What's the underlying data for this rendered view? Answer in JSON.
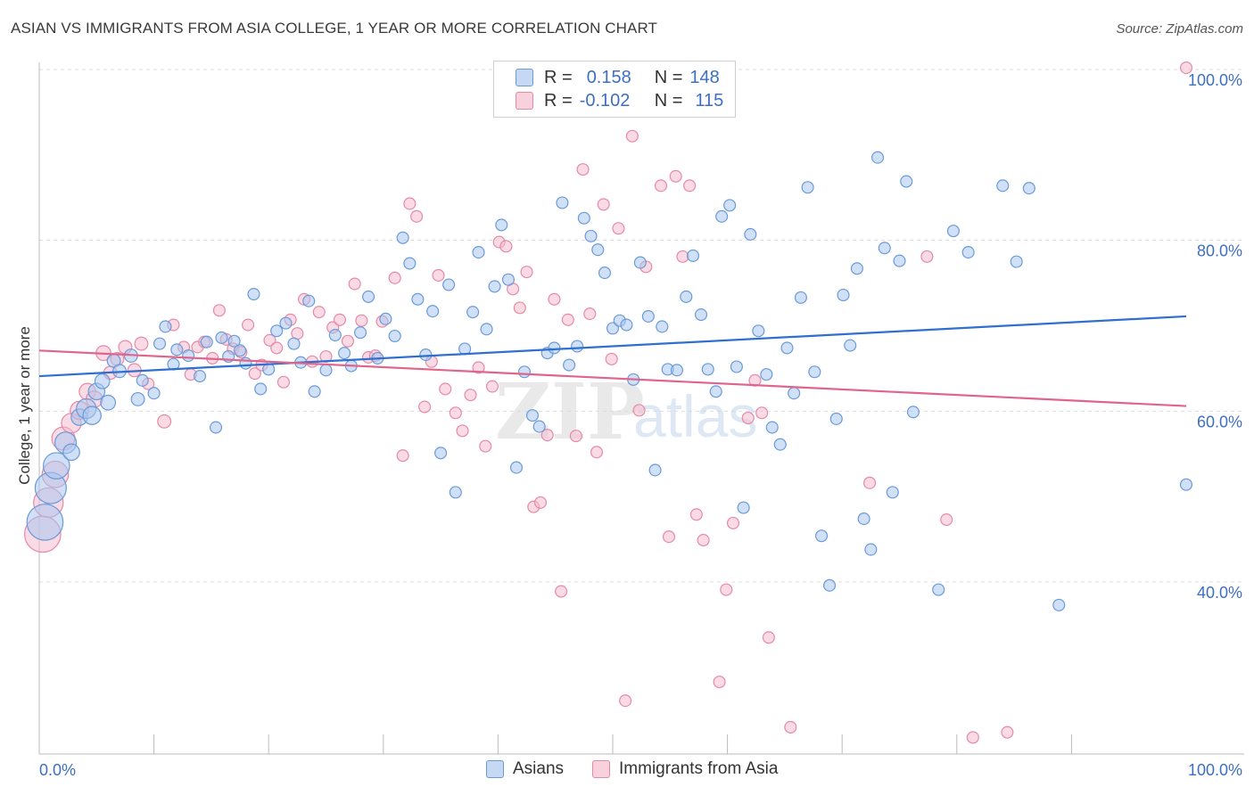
{
  "title": "ASIAN VS IMMIGRANTS FROM ASIA COLLEGE, 1 YEAR OR MORE CORRELATION CHART",
  "source": "Source: ZipAtlas.com",
  "colors": {
    "blue_fill": "#a9c7ee",
    "blue_stroke": "#6a9ad8",
    "blue_line": "#2e6fd0",
    "pink_fill": "#f6bccd",
    "pink_stroke": "#e58aa6",
    "pink_line": "#e0648c",
    "tick_text": "#3d6fc4",
    "grid": "#dddddd"
  },
  "legend_top": {
    "rows": [
      {
        "r_label": "R =",
        "r_value": "0.158",
        "n_label": "N =",
        "n_value": "148"
      },
      {
        "r_label": "R =",
        "r_value": "-0.102",
        "n_label": "N =",
        "n_value": "115"
      }
    ]
  },
  "watermark": {
    "zip": "ZIP",
    "atlas": "atlas"
  },
  "chart_data": {
    "type": "scatter",
    "title": "ASIAN VS IMMIGRANTS FROM ASIA COLLEGE, 1 YEAR OR MORE CORRELATION CHART",
    "xlabel": "",
    "ylabel": "College, 1 year or more",
    "xlim": [
      0,
      100
    ],
    "ylim": [
      22,
      102
    ],
    "x_tick_labels": [
      "0.0%",
      "100.0%"
    ],
    "y_ticks": [
      40,
      60,
      80,
      100
    ],
    "y_tick_labels": [
      "40.0%",
      "60.0%",
      "80.0%",
      "100.0%"
    ],
    "grid": true,
    "legend_position": "top-center",
    "series": [
      {
        "name": "Asians",
        "color": "#6a9ad8",
        "trend": {
          "x": [
            0,
            100
          ],
          "y": [
            64.1,
            71.1
          ]
        },
        "points": [
          [
            0.5,
            47,
            2.2
          ],
          [
            1,
            51,
            1.9
          ],
          [
            1.5,
            53.6,
            1.6
          ],
          [
            2.3,
            56.3,
            1.3
          ],
          [
            2.8,
            55.2,
            1
          ],
          [
            3.5,
            59.3,
            1
          ],
          [
            4.1,
            60.3,
            1.2
          ],
          [
            4.6,
            59.5,
            1.1
          ],
          [
            5,
            62.3,
            1
          ],
          [
            5.5,
            63.5,
            0.9
          ],
          [
            6,
            61,
            0.9
          ],
          [
            6.5,
            65.9,
            0.8
          ],
          [
            7,
            64.7,
            0.8
          ],
          [
            8,
            66.5,
            0.8
          ],
          [
            8.6,
            61.4,
            0.8
          ],
          [
            9,
            63.6,
            0.7
          ],
          [
            10,
            62.1,
            0.7
          ],
          [
            10.5,
            67.9,
            0.7
          ],
          [
            11,
            69.9,
            0.7
          ],
          [
            11.7,
            65.5,
            0.7
          ],
          [
            12,
            67.2,
            0.7
          ],
          [
            13,
            66.5,
            0.7
          ],
          [
            14,
            64.1,
            0.7
          ],
          [
            14.6,
            68.1,
            0.7
          ],
          [
            15.4,
            58.1,
            0.7
          ],
          [
            15.9,
            68.6,
            0.7
          ],
          [
            16.5,
            66.4,
            0.7
          ],
          [
            17,
            68.2,
            0.7
          ],
          [
            17.5,
            67.1,
            0.7
          ],
          [
            18,
            65.6,
            0.7
          ],
          [
            18.7,
            73.7,
            0.7
          ],
          [
            19.3,
            62.6,
            0.7
          ],
          [
            20,
            64.9,
            0.7
          ],
          [
            20.7,
            69.4,
            0.7
          ],
          [
            21.5,
            70.3,
            0.7
          ],
          [
            22.2,
            67.9,
            0.7
          ],
          [
            22.8,
            65.7,
            0.7
          ],
          [
            23.5,
            72.9,
            0.7
          ],
          [
            24,
            62.3,
            0.7
          ],
          [
            25,
            64.8,
            0.7
          ],
          [
            25.8,
            68.9,
            0.7
          ],
          [
            26.6,
            66.8,
            0.7
          ],
          [
            27.2,
            65.3,
            0.7
          ],
          [
            28,
            69.2,
            0.7
          ],
          [
            28.7,
            73.4,
            0.7
          ],
          [
            29.5,
            66.2,
            0.7
          ],
          [
            30.2,
            70.8,
            0.7
          ],
          [
            31,
            68.8,
            0.7
          ],
          [
            31.7,
            80.3,
            0.7
          ],
          [
            32.3,
            77.3,
            0.7
          ],
          [
            33,
            73.1,
            0.7
          ],
          [
            33.7,
            66.6,
            0.7
          ],
          [
            34.3,
            71.7,
            0.7
          ],
          [
            35,
            55.1,
            0.7
          ],
          [
            35.7,
            74.8,
            0.7
          ],
          [
            36.3,
            50.5,
            0.7
          ],
          [
            37.1,
            67.3,
            0.7
          ],
          [
            37.8,
            71.6,
            0.7
          ],
          [
            38.3,
            78.6,
            0.7
          ],
          [
            39,
            69.6,
            0.7
          ],
          [
            39.7,
            74.6,
            0.7
          ],
          [
            40.3,
            81.8,
            0.7
          ],
          [
            40.9,
            75.4,
            0.7
          ],
          [
            41.6,
            53.4,
            0.7
          ],
          [
            42.3,
            64.6,
            0.7
          ],
          [
            43,
            59.5,
            0.7
          ],
          [
            43.6,
            58.2,
            0.7
          ],
          [
            44.3,
            66.8,
            0.7
          ],
          [
            44.9,
            67.4,
            0.7
          ],
          [
            45.6,
            84.4,
            0.7
          ],
          [
            46.2,
            65.4,
            0.7
          ],
          [
            46.9,
            67.6,
            0.7
          ],
          [
            47.5,
            82.6,
            0.7
          ],
          [
            48.1,
            80.5,
            0.7
          ],
          [
            48.7,
            78.9,
            0.7
          ],
          [
            49.3,
            76.2,
            0.7
          ],
          [
            50,
            69.7,
            0.7
          ],
          [
            50.6,
            70.6,
            0.7
          ],
          [
            51.2,
            70.1,
            0.7
          ],
          [
            51.8,
            63.7,
            0.7
          ],
          [
            52.4,
            77.4,
            0.7
          ],
          [
            53.1,
            71.1,
            0.7
          ],
          [
            53.7,
            53.1,
            0.7
          ],
          [
            54.3,
            69.9,
            0.7
          ],
          [
            54.8,
            64.9,
            0.7
          ],
          [
            55.6,
            64.8,
            0.7
          ],
          [
            56.4,
            73.4,
            0.7
          ],
          [
            57,
            78.2,
            0.7
          ],
          [
            57.7,
            71.3,
            0.7
          ],
          [
            58.3,
            64.9,
            0.7
          ],
          [
            59,
            62.3,
            0.7
          ],
          [
            59.5,
            82.8,
            0.7
          ],
          [
            60.2,
            84.1,
            0.7
          ],
          [
            60.8,
            65.2,
            0.7
          ],
          [
            61.4,
            48.7,
            0.7
          ],
          [
            62,
            80.7,
            0.7
          ],
          [
            62.7,
            69.4,
            0.7
          ],
          [
            63.4,
            64.3,
            0.7
          ],
          [
            63.9,
            58.1,
            0.7
          ],
          [
            64.6,
            56.1,
            0.7
          ],
          [
            65.2,
            67.4,
            0.7
          ],
          [
            65.8,
            62.1,
            0.7
          ],
          [
            66.4,
            73.3,
            0.7
          ],
          [
            67,
            86.2,
            0.7
          ],
          [
            67.6,
            64.6,
            0.7
          ],
          [
            68.2,
            45.4,
            0.7
          ],
          [
            68.9,
            39.6,
            0.7
          ],
          [
            69.5,
            59.1,
            0.7
          ],
          [
            70.1,
            73.6,
            0.7
          ],
          [
            70.7,
            67.7,
            0.7
          ],
          [
            71.3,
            76.7,
            0.7
          ],
          [
            71.9,
            47.4,
            0.7
          ],
          [
            72.5,
            43.8,
            0.7
          ],
          [
            73.1,
            89.7,
            0.7
          ],
          [
            73.7,
            79.1,
            0.7
          ],
          [
            74.4,
            50.5,
            0.7
          ],
          [
            75,
            77.6,
            0.7
          ],
          [
            75.6,
            86.9,
            0.7
          ],
          [
            76.2,
            59.9,
            0.7
          ],
          [
            78.4,
            39.1,
            0.7
          ],
          [
            79.7,
            81.1,
            0.7
          ],
          [
            81,
            78.6,
            0.7
          ],
          [
            84,
            86.4,
            0.7
          ],
          [
            85.2,
            77.5,
            0.7
          ],
          [
            86.3,
            86.1,
            0.7
          ],
          [
            88.9,
            37.3,
            0.7
          ],
          [
            100,
            51.4,
            0.7
          ]
        ]
      },
      {
        "name": "Immigrants from Asia",
        "color": "#e58aa6",
        "trend": {
          "x": [
            0,
            100
          ],
          "y": [
            67.1,
            60.6
          ]
        },
        "points": [
          [
            0.3,
            45.6,
            2.2
          ],
          [
            0.8,
            49.3,
            1.8
          ],
          [
            1.4,
            52.6,
            1.6
          ],
          [
            2.1,
            56.8,
            1.4
          ],
          [
            2.8,
            58.6,
            1.2
          ],
          [
            3.5,
            60.1,
            1.1
          ],
          [
            4.2,
            62.3,
            1
          ],
          [
            4.8,
            61.4,
            1
          ],
          [
            5.6,
            66.8,
            0.9
          ],
          [
            6.2,
            64.5,
            0.8
          ],
          [
            6.8,
            66.1,
            0.8
          ],
          [
            7.5,
            67.5,
            0.8
          ],
          [
            8.3,
            64.8,
            0.8
          ],
          [
            8.9,
            67.9,
            0.8
          ],
          [
            9.5,
            63.2,
            0.7
          ],
          [
            10.9,
            58.8,
            0.8
          ],
          [
            11.7,
            70.1,
            0.7
          ],
          [
            12.6,
            67.5,
            0.7
          ],
          [
            13.2,
            64.3,
            0.7
          ],
          [
            13.8,
            67.5,
            0.7
          ],
          [
            14.4,
            68.1,
            0.7
          ],
          [
            15.1,
            66.2,
            0.7
          ],
          [
            15.7,
            71.8,
            0.7
          ],
          [
            16.3,
            68.4,
            0.7
          ],
          [
            16.9,
            67.3,
            0.7
          ],
          [
            17.6,
            66.9,
            0.7
          ],
          [
            18.2,
            70.1,
            0.7
          ],
          [
            18.8,
            64.4,
            0.7
          ],
          [
            19.4,
            65.4,
            0.7
          ],
          [
            20.1,
            68.3,
            0.7
          ],
          [
            20.7,
            67.4,
            0.7
          ],
          [
            21.3,
            63.4,
            0.7
          ],
          [
            21.9,
            70.7,
            0.7
          ],
          [
            22.5,
            69.1,
            0.7
          ],
          [
            23.1,
            73.1,
            0.7
          ],
          [
            23.8,
            65.8,
            0.7
          ],
          [
            24.4,
            71.6,
            0.7
          ],
          [
            25,
            66.4,
            0.7
          ],
          [
            25.6,
            69.8,
            0.7
          ],
          [
            26.2,
            70.7,
            0.7
          ],
          [
            26.9,
            68.2,
            0.7
          ],
          [
            27.5,
            74.9,
            0.7
          ],
          [
            28.1,
            70.6,
            0.7
          ],
          [
            28.7,
            66.3,
            0.7
          ],
          [
            29.3,
            66.5,
            0.7
          ],
          [
            29.9,
            70.5,
            0.7
          ],
          [
            31,
            75.6,
            0.7
          ],
          [
            31.7,
            54.8,
            0.7
          ],
          [
            32.3,
            84.3,
            0.7
          ],
          [
            32.9,
            82.8,
            0.7
          ],
          [
            33.6,
            60.5,
            0.7
          ],
          [
            34.2,
            65.8,
            0.7
          ],
          [
            34.8,
            75.9,
            0.7
          ],
          [
            35.4,
            62.6,
            0.7
          ],
          [
            36.3,
            59.8,
            0.7
          ],
          [
            36.9,
            57.7,
            0.7
          ],
          [
            37.6,
            61.9,
            0.7
          ],
          [
            38.3,
            65.1,
            0.7
          ],
          [
            38.9,
            55.9,
            0.7
          ],
          [
            39.5,
            62.9,
            0.7
          ],
          [
            40.1,
            79.8,
            0.7
          ],
          [
            40.7,
            79.3,
            0.7
          ],
          [
            41.3,
            74.3,
            0.7
          ],
          [
            41.9,
            72.1,
            0.7
          ],
          [
            42.5,
            76.3,
            0.7
          ],
          [
            43.1,
            48.8,
            0.7
          ],
          [
            43.7,
            49.3,
            0.7
          ],
          [
            44.3,
            57.2,
            0.7
          ],
          [
            44.9,
            73.1,
            0.7
          ],
          [
            45.5,
            38.9,
            0.7
          ],
          [
            46.1,
            70.7,
            0.7
          ],
          [
            46.8,
            57.1,
            0.7
          ],
          [
            47.4,
            88.3,
            0.7
          ],
          [
            48,
            71.4,
            0.7
          ],
          [
            48.6,
            55.2,
            0.7
          ],
          [
            49.2,
            84.2,
            0.7
          ],
          [
            49.9,
            66.1,
            0.7
          ],
          [
            50.5,
            81.4,
            0.7
          ],
          [
            51.1,
            26.1,
            0.7
          ],
          [
            51.7,
            92.2,
            0.7
          ],
          [
            52.3,
            60.1,
            0.7
          ],
          [
            52.9,
            76.9,
            0.7
          ],
          [
            54.2,
            86.4,
            0.7
          ],
          [
            54.9,
            45.3,
            0.7
          ],
          [
            55.5,
            87.5,
            0.7
          ],
          [
            56.1,
            78.1,
            0.7
          ],
          [
            56.7,
            86.4,
            0.7
          ],
          [
            57.3,
            47.9,
            0.7
          ],
          [
            57.9,
            44.9,
            0.7
          ],
          [
            59.3,
            28.3,
            0.7
          ],
          [
            59.9,
            39.1,
            0.7
          ],
          [
            60.5,
            46.9,
            0.7
          ],
          [
            61.8,
            59.2,
            0.7
          ],
          [
            62.4,
            63.6,
            0.7
          ],
          [
            63,
            59.8,
            0.7
          ],
          [
            63.6,
            33.5,
            0.7
          ],
          [
            65.5,
            23,
            0.7
          ],
          [
            72.4,
            51.6,
            0.7
          ],
          [
            77.4,
            78.1,
            0.7
          ],
          [
            79.1,
            47.3,
            0.7
          ],
          [
            81.4,
            21.8,
            0.7
          ],
          [
            84.4,
            22.4,
            0.7
          ],
          [
            100,
            100.2,
            0.7
          ]
        ]
      }
    ]
  }
}
